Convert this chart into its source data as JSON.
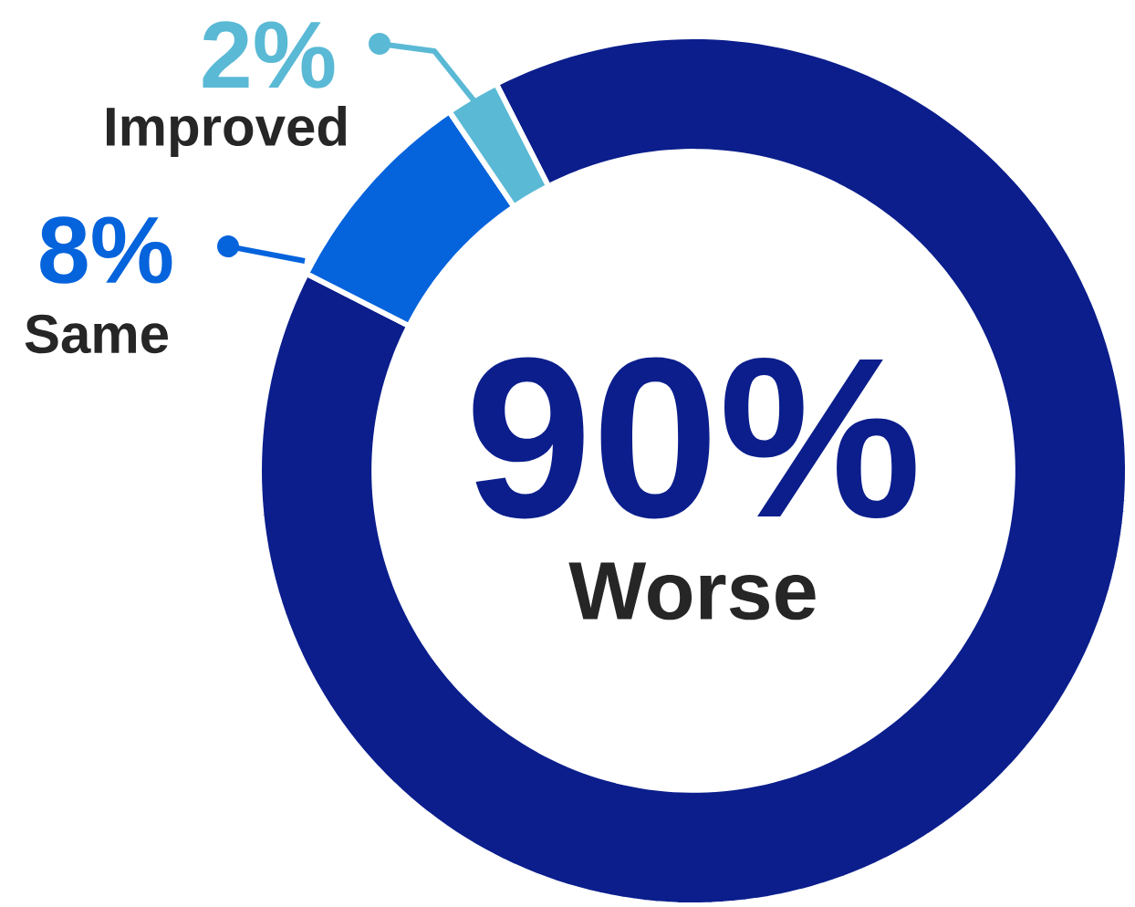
{
  "chart_data": {
    "type": "donut",
    "categories": [
      "Worse",
      "Same",
      "Improved"
    ],
    "values": [
      90,
      8,
      2
    ],
    "colors": [
      "#0b1e8c",
      "#0563dc",
      "#5ab9d5"
    ],
    "value_labels": [
      "90%",
      "8%",
      "2%"
    ]
  }
}
